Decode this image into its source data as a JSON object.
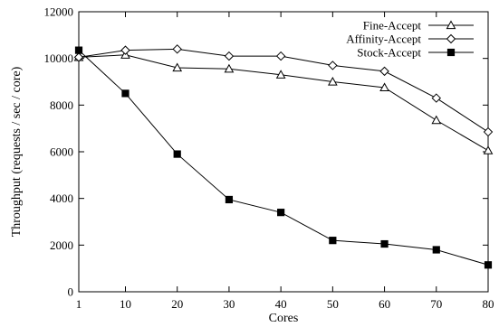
{
  "chart_data": {
    "type": "line",
    "xlabel": "Cores",
    "ylabel": "Throughput (requests / sec / core)",
    "x": [
      1,
      10,
      20,
      30,
      40,
      50,
      60,
      70,
      80
    ],
    "xticks": [
      "1",
      "10",
      "20",
      "30",
      "40",
      "50",
      "60",
      "70",
      "80"
    ],
    "yticks": [
      "0",
      "2000",
      "4000",
      "6000",
      "8000",
      "10000",
      "12000"
    ],
    "xlim": [
      1,
      80
    ],
    "ylim": [
      0,
      12000
    ],
    "grid": false,
    "legend_position": "top-right",
    "series": [
      {
        "name": "Fine-Accept",
        "marker": "triangle-open",
        "values": [
          10050,
          10150,
          9600,
          9550,
          9300,
          9000,
          8750,
          7350,
          6050
        ]
      },
      {
        "name": "Affinity-Accept",
        "marker": "diamond-open",
        "values": [
          10050,
          10350,
          10400,
          10100,
          10100,
          9700,
          9450,
          8300,
          6850
        ]
      },
      {
        "name": "Stock-Accept",
        "marker": "square-filled",
        "values": [
          10350,
          8500,
          5900,
          3950,
          3400,
          2200,
          2050,
          1800,
          1150
        ]
      }
    ]
  }
}
